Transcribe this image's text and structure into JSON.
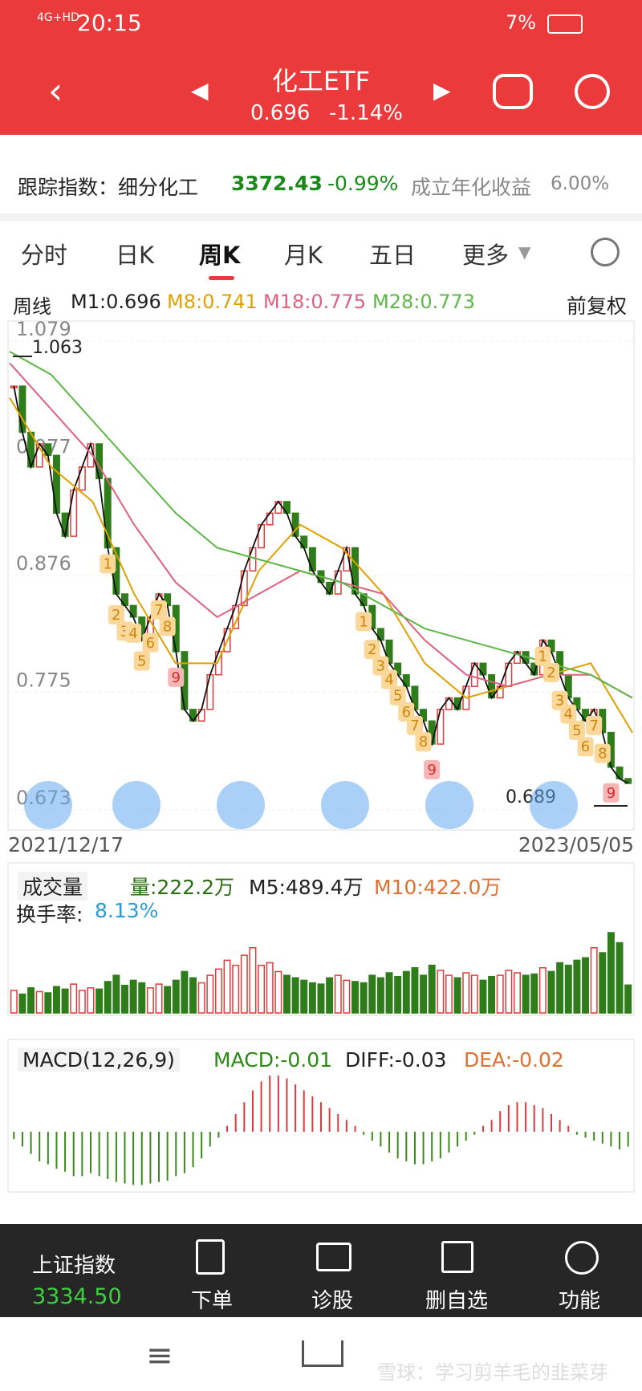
{
  "status": {
    "network": "4G+HD",
    "time": "20:15",
    "battery": "7%"
  },
  "header": {
    "title": "化工ETF",
    "price": "0.696",
    "change": "-1.14%"
  },
  "index": {
    "label": "跟踪指数：细分化工",
    "value": "3372.43",
    "change": "-0.99%",
    "return_label": "成立年化收益",
    "return_value": "6.00%"
  },
  "tabs": [
    "分时",
    "日K",
    "周K",
    "月K",
    "五日",
    "更多"
  ],
  "kline": {
    "period": "周线",
    "m1": "M1:0.696",
    "adjust": "前复权",
    "ylim": [
      0.673,
      1.079
    ],
    "yticks": [
      1.079,
      0.977,
      0.876,
      0.775,
      0.673
    ],
    "high": 1.063,
    "low": 0.689,
    "start_date": "2021/12/17",
    "end_date": "2023/05/05",
    "close": [
      1.04,
      1.0,
      0.97,
      0.99,
      0.98,
      0.93,
      0.91,
      0.95,
      0.97,
      0.99,
      0.96,
      0.9,
      0.86,
      0.85,
      0.84,
      0.82,
      0.84,
      0.86,
      0.85,
      0.81,
      0.76,
      0.75,
      0.76,
      0.79,
      0.81,
      0.83,
      0.85,
      0.88,
      0.9,
      0.92,
      0.93,
      0.94,
      0.93,
      0.91,
      0.9,
      0.88,
      0.87,
      0.86,
      0.88,
      0.9,
      0.86,
      0.85,
      0.83,
      0.82,
      0.8,
      0.79,
      0.78,
      0.76,
      0.75,
      0.73,
      0.76,
      0.77,
      0.76,
      0.78,
      0.8,
      0.79,
      0.77,
      0.78,
      0.8,
      0.81,
      0.8,
      0.79,
      0.82,
      0.81,
      0.79,
      0.77,
      0.76,
      0.75,
      0.76,
      0.74,
      0.71,
      0.7,
      0.696
    ],
    "ma": [
      {
        "name": "M8:0.741",
        "color": "#e0a000",
        "values": [
          1.03,
          0.97,
          0.94,
          0.86,
          0.8,
          0.8,
          0.88,
          0.92,
          0.9,
          0.86,
          0.8,
          0.77,
          0.78,
          0.79,
          0.8,
          0.74
        ]
      },
      {
        "name": "M18:0.775",
        "color": "#e0607f",
        "values": [
          1.06,
          1.02,
          0.98,
          0.92,
          0.87,
          0.84,
          0.86,
          0.88,
          0.87,
          0.86,
          0.82,
          0.79,
          0.78,
          0.79,
          0.79,
          0.77
        ]
      },
      {
        "name": "M28:0.773",
        "color": "#5cb845",
        "values": [
          1.07,
          1.05,
          1.01,
          0.97,
          0.93,
          0.9,
          0.89,
          0.88,
          0.87,
          0.85,
          0.83,
          0.82,
          0.81,
          0.8,
          0.79,
          0.77
        ]
      }
    ],
    "td_sequences": [
      [
        "1",
        "2",
        "3",
        "4",
        "5",
        "6",
        "7",
        "8",
        "9"
      ],
      [
        "1",
        "2",
        "3",
        "4",
        "5",
        "6",
        "7",
        "8",
        "9"
      ],
      [
        "1",
        "2",
        "3",
        "4",
        "5",
        "6",
        "7",
        "8",
        "9"
      ]
    ]
  },
  "volume": {
    "label": "成交量",
    "legend": [
      "量:222.2万",
      "M5:489.4万",
      "M10:422.0万"
    ],
    "turnover_label": "换手率:",
    "turnover": "8.13%",
    "values": [
      180,
      150,
      200,
      170,
      160,
      210,
      190,
      230,
      180,
      200,
      190,
      250,
      300,
      220,
      260,
      240,
      200,
      230,
      210,
      260,
      330,
      280,
      240,
      300,
      350,
      420,
      380,
      460,
      520,
      380,
      400,
      330,
      300,
      280,
      260,
      240,
      230,
      280,
      300,
      260,
      250,
      240,
      300,
      280,
      320,
      290,
      330,
      360,
      300,
      380,
      340,
      300,
      280,
      320,
      300,
      260,
      290,
      300,
      340,
      320,
      300,
      310,
      360,
      330,
      400,
      380,
      420,
      440,
      520,
      480,
      640,
      560,
      222.2
    ]
  },
  "macd": {
    "label": "MACD(12,26,9)",
    "legend": [
      "MACD:-0.01",
      "DIFF:-0.03",
      "DEA:-0.02"
    ],
    "values": [
      -0.005,
      -0.01,
      -0.015,
      -0.02,
      -0.022,
      -0.025,
      -0.027,
      -0.03,
      -0.03,
      -0.028,
      -0.03,
      -0.032,
      -0.034,
      -0.035,
      -0.036,
      -0.036,
      -0.035,
      -0.034,
      -0.033,
      -0.03,
      -0.028,
      -0.024,
      -0.018,
      -0.01,
      -0.004,
      0.004,
      0.012,
      0.02,
      0.028,
      0.034,
      0.038,
      0.038,
      0.036,
      0.032,
      0.028,
      0.024,
      0.02,
      0.016,
      0.012,
      0.008,
      0.004,
      -0.002,
      -0.006,
      -0.01,
      -0.014,
      -0.018,
      -0.02,
      -0.022,
      -0.022,
      -0.02,
      -0.018,
      -0.014,
      -0.01,
      -0.006,
      -0.002,
      0.004,
      0.008,
      0.014,
      0.018,
      0.02,
      0.02,
      0.018,
      0.016,
      0.012,
      0.008,
      0.004,
      -0.002,
      -0.004,
      -0.006,
      -0.008,
      -0.01,
      -0.012,
      -0.01
    ]
  },
  "bottom": {
    "index_name": "上证指数",
    "index_value": "3334.50",
    "buttons": [
      "下单",
      "诊股",
      "删自选",
      "功能"
    ]
  },
  "watermark": "雪球：学习剪羊毛的韭菜芽"
}
